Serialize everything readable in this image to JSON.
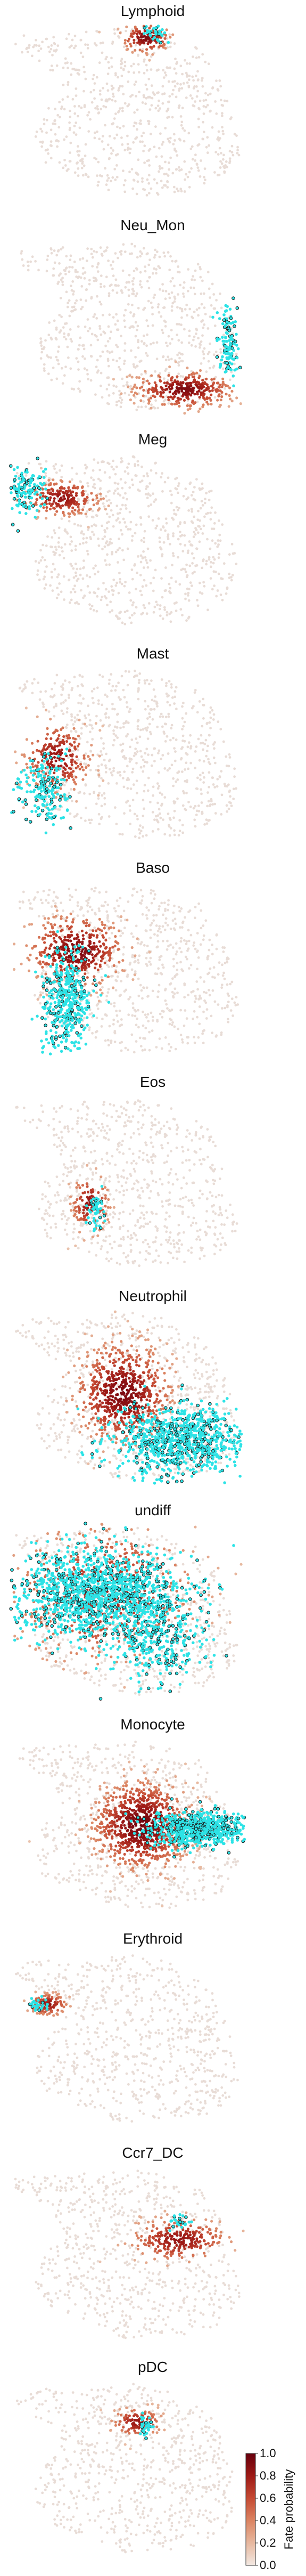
{
  "chart_data": {
    "type": "scatter",
    "description_free": true,
    "panels": [
      {
        "title": "Lymphoid",
        "hot": [
          {
            "u": 0.58,
            "v": 0.08,
            "su": 0.05,
            "sv": 0.04,
            "p": 0.9,
            "n": 140
          }
        ],
        "cyan": [
          {
            "u": 0.62,
            "v": 0.05,
            "su": 0.03,
            "sv": 0.03,
            "n": 40
          }
        ]
      },
      {
        "title": "Neu_Mon",
        "hot": [
          {
            "u": 0.74,
            "v": 0.86,
            "su": 0.1,
            "sv": 0.05,
            "p": 0.9,
            "n": 320
          }
        ],
        "cyan": [
          {
            "u": 0.93,
            "v": 0.6,
            "su": 0.02,
            "sv": 0.1,
            "n": 120
          }
        ]
      },
      {
        "title": "Meg",
        "hot": [
          {
            "u": 0.22,
            "v": 0.26,
            "su": 0.08,
            "sv": 0.05,
            "p": 0.8,
            "n": 220
          }
        ],
        "cyan": [
          {
            "u": 0.06,
            "v": 0.22,
            "su": 0.05,
            "sv": 0.06,
            "n": 140
          }
        ]
      },
      {
        "title": "Mast",
        "hot": [
          {
            "u": 0.2,
            "v": 0.52,
            "su": 0.07,
            "sv": 0.1,
            "p": 0.8,
            "n": 240
          }
        ],
        "cyan": [
          {
            "u": 0.14,
            "v": 0.7,
            "su": 0.06,
            "sv": 0.09,
            "n": 180
          }
        ]
      },
      {
        "title": "Baso",
        "hot": [
          {
            "u": 0.28,
            "v": 0.4,
            "su": 0.1,
            "sv": 0.1,
            "p": 0.9,
            "n": 420
          }
        ],
        "cyan": [
          {
            "u": 0.24,
            "v": 0.68,
            "su": 0.05,
            "sv": 0.14,
            "n": 420
          }
        ]
      },
      {
        "title": "Eos",
        "hot": [
          {
            "u": 0.34,
            "v": 0.62,
            "su": 0.04,
            "sv": 0.08,
            "p": 0.8,
            "n": 120
          }
        ],
        "cyan": [
          {
            "u": 0.36,
            "v": 0.66,
            "su": 0.02,
            "sv": 0.05,
            "n": 50
          }
        ]
      },
      {
        "title": "Neutrophil",
        "hot": [
          {
            "u": 0.48,
            "v": 0.48,
            "su": 0.1,
            "sv": 0.14,
            "p": 0.9,
            "n": 700
          }
        ],
        "cyan": [
          {
            "u": 0.72,
            "v": 0.74,
            "su": 0.14,
            "sv": 0.1,
            "n": 900
          }
        ]
      },
      {
        "title": "undiff",
        "hot": [
          {
            "u": 0.4,
            "v": 0.4,
            "su": 0.2,
            "sv": 0.2,
            "p": 0.7,
            "n": 500
          }
        ],
        "cyan": [
          {
            "u": 0.38,
            "v": 0.4,
            "su": 0.18,
            "sv": 0.12,
            "n": 1400
          },
          {
            "u": 0.62,
            "v": 0.68,
            "su": 0.1,
            "sv": 0.1,
            "n": 300
          }
        ]
      },
      {
        "title": "Monocyte",
        "hot": [
          {
            "u": 0.56,
            "v": 0.5,
            "su": 0.1,
            "sv": 0.12,
            "p": 0.95,
            "n": 900
          }
        ],
        "cyan": [
          {
            "u": 0.8,
            "v": 0.52,
            "su": 0.1,
            "sv": 0.05,
            "n": 700
          }
        ]
      },
      {
        "title": "Erythroid",
        "hot": [
          {
            "u": 0.16,
            "v": 0.3,
            "su": 0.04,
            "sv": 0.03,
            "p": 0.8,
            "n": 130
          }
        ],
        "cyan": [
          {
            "u": 0.12,
            "v": 0.3,
            "su": 0.02,
            "sv": 0.02,
            "n": 30
          }
        ]
      },
      {
        "title": "Ccr7_DC",
        "hot": [
          {
            "u": 0.72,
            "v": 0.42,
            "su": 0.1,
            "sv": 0.06,
            "p": 0.8,
            "n": 260
          }
        ],
        "cyan": [
          {
            "u": 0.72,
            "v": 0.32,
            "su": 0.02,
            "sv": 0.02,
            "n": 25
          }
        ]
      },
      {
        "title": "pDC",
        "hot": [
          {
            "u": 0.54,
            "v": 0.24,
            "su": 0.05,
            "sv": 0.04,
            "p": 0.8,
            "n": 110
          }
        ],
        "cyan": [
          {
            "u": 0.58,
            "v": 0.26,
            "su": 0.02,
            "sv": 0.03,
            "n": 35
          }
        ]
      }
    ],
    "colorbar": {
      "label": "Fate probability",
      "ticks": [
        "0.0",
        "0.2",
        "0.4",
        "0.6",
        "0.8",
        "1.0"
      ],
      "vmin": 0.0,
      "vmax": 1.0,
      "colormap": [
        "#f2e8e2",
        "#e7b89f",
        "#db8462",
        "#c54a33",
        "#9e1a16",
        "#67000d"
      ]
    },
    "colors": {
      "background_cells": "#e8dcd6",
      "terminal_cells": "#2de3e6",
      "terminal_edge": "#1a1a1a"
    },
    "axes": "off",
    "grid": false,
    "legend": "colorbar-bottom-right"
  }
}
